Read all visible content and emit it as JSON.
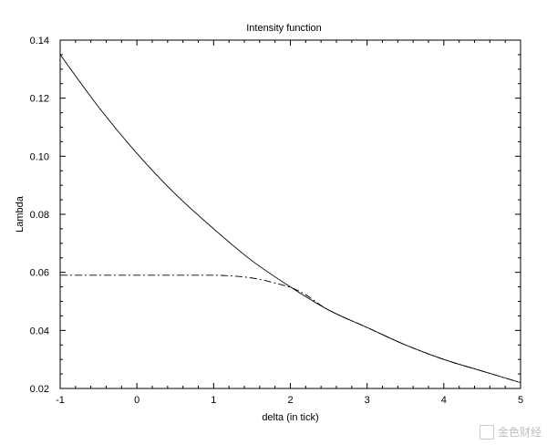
{
  "chart_data": {
    "type": "line",
    "title": "Intensity function",
    "xlabel": "delta (in tick)",
    "ylabel": "Lambda",
    "xlim": [
      -1,
      5
    ],
    "ylim": [
      0.02,
      0.14
    ],
    "x_ticks": [
      -1,
      0,
      1,
      2,
      3,
      4,
      5
    ],
    "x_tick_labels": [
      "-1",
      "0",
      "1",
      "2",
      "3",
      "4",
      "5"
    ],
    "y_ticks": [
      0.02,
      0.04,
      0.06,
      0.08,
      0.1,
      0.12,
      0.14
    ],
    "y_tick_labels": [
      "0.02",
      "0.04",
      "0.06",
      "0.08",
      "0.10",
      "0.12",
      "0.14"
    ],
    "grid": false,
    "legend": "none",
    "series": [
      {
        "style": "solid",
        "x": [
          -1.0,
          -0.5,
          0.0,
          0.5,
          1.0,
          1.5,
          2.0,
          2.5,
          3.0,
          3.5,
          4.0,
          4.5,
          5.0
        ],
        "y": [
          0.135,
          0.117,
          0.101,
          0.087,
          0.075,
          0.064,
          0.055,
          0.047,
          0.041,
          0.035,
          0.03,
          0.026,
          0.022
        ]
      },
      {
        "style": "dash-dot",
        "x": [
          -1.0,
          -0.5,
          0.0,
          0.5,
          1.0,
          1.2,
          1.4,
          1.6,
          1.8,
          2.0,
          2.2,
          2.5,
          3.0,
          3.5,
          4.0,
          4.5,
          5.0
        ],
        "y": [
          0.059,
          0.059,
          0.059,
          0.059,
          0.059,
          0.0588,
          0.0584,
          0.0576,
          0.0563,
          0.0548,
          0.0523,
          0.047,
          0.041,
          0.035,
          0.03,
          0.026,
          0.022
        ]
      }
    ]
  },
  "watermark": {
    "text": "金色财经"
  }
}
